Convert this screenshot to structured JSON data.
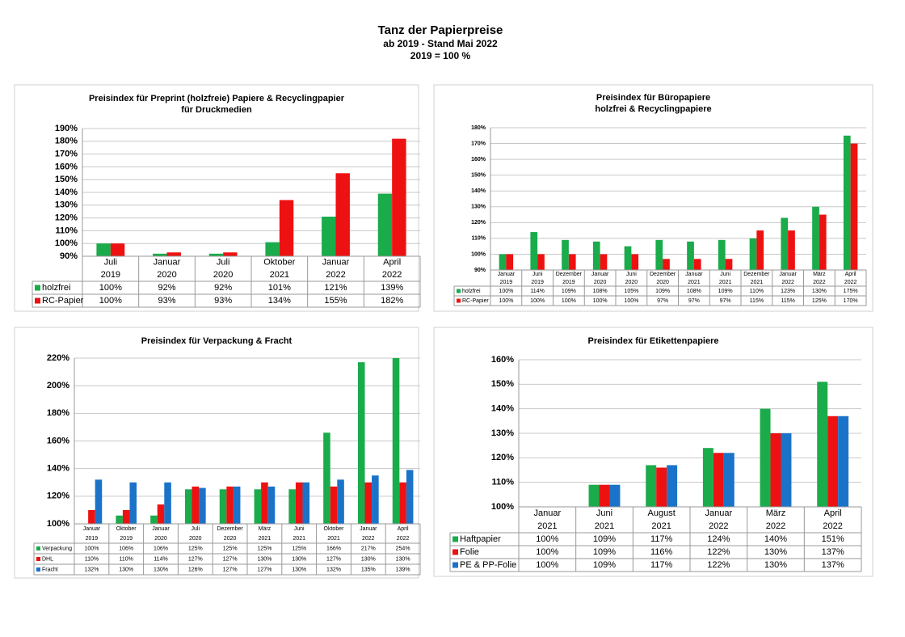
{
  "title": "Tanz der Papierpreise",
  "subtitle": [
    "ab 2019 - Stand Mai 2022",
    "2019 = 100 %"
  ],
  "chart_data": [
    {
      "type": "bar",
      "title": [
        "Preisindex für Preprint (holzfreie) Papiere & Recyclingpapier",
        "für Druckmedien"
      ],
      "categories": [
        [
          "Juli",
          "2019"
        ],
        [
          "Januar",
          "2020"
        ],
        [
          "Juli",
          "2020"
        ],
        [
          "Oktober",
          "2021"
        ],
        [
          "Januar",
          "2022"
        ],
        [
          "April",
          "2022"
        ]
      ],
      "series": [
        {
          "name": "holzfrei",
          "color": "#1aab4b",
          "values": [
            100,
            92,
            92,
            101,
            121,
            139
          ],
          "value_labels": [
            "100%",
            "92%",
            "92%",
            "101%",
            "121%",
            "139%"
          ]
        },
        {
          "name": "RC-Papier",
          "color": "#ee1111",
          "values": [
            100,
            93,
            93,
            134,
            155,
            182
          ],
          "value_labels": [
            "100%",
            "93%",
            "93%",
            "134%",
            "155%",
            "182%"
          ]
        }
      ],
      "ylim": [
        90,
        190
      ],
      "yticks": [
        {
          "value": 90,
          "label": "90%"
        },
        {
          "value": 100,
          "label": "100%"
        },
        {
          "value": 110,
          "label": "110%"
        },
        {
          "value": 120,
          "label": "120%"
        },
        {
          "value": 130,
          "label": "130%"
        },
        {
          "value": 140,
          "label": "140%"
        },
        {
          "value": 150,
          "label": "150%"
        },
        {
          "value": 160,
          "label": "160%"
        },
        {
          "value": 170,
          "label": "170%"
        },
        {
          "value": 180,
          "label": "180%"
        },
        {
          "value": 190,
          "label": "190%"
        }
      ],
      "grid": true
    },
    {
      "type": "bar",
      "title": [
        "Preisindex für  Büropapiere",
        "holzfrei & Recyclingpapiere"
      ],
      "categories": [
        [
          "Januar",
          "2019"
        ],
        [
          "Juni",
          "2019"
        ],
        [
          "Dezember",
          "2019"
        ],
        [
          "Januar",
          "2020"
        ],
        [
          "Juni",
          "2020"
        ],
        [
          "Dezember",
          "2020"
        ],
        [
          "Januar",
          "2021"
        ],
        [
          "Juni",
          "2021"
        ],
        [
          "Dezember",
          "2021"
        ],
        [
          "Januar",
          "2022"
        ],
        [
          "März",
          "2022"
        ],
        [
          "April",
          "2022"
        ]
      ],
      "series": [
        {
          "name": "holzfrei",
          "color": "#1aab4b",
          "values": [
            100,
            114,
            109,
            108,
            105,
            109,
            108,
            109,
            110,
            123,
            130,
            175
          ],
          "value_labels": [
            "100%",
            "114%",
            "109%",
            "108%",
            "105%",
            "109%",
            "108%",
            "109%",
            "110%",
            "123%",
            "130%",
            "175%"
          ]
        },
        {
          "name": "RC-Papier",
          "color": "#ee1111",
          "values": [
            100,
            100,
            100,
            100,
            100,
            97,
            97,
            97,
            115,
            115,
            125,
            170
          ],
          "value_labels": [
            "100%",
            "100%",
            "100%",
            "100%",
            "100%",
            "97%",
            "97%",
            "97%",
            "115%",
            "115%",
            "125%",
            "170%"
          ]
        }
      ],
      "ylim": [
        90,
        180
      ],
      "yticks": [
        {
          "value": 90,
          "label": "90%"
        },
        {
          "value": 100,
          "label": "100%"
        },
        {
          "value": 110,
          "label": "110%"
        },
        {
          "value": 120,
          "label": "120%"
        },
        {
          "value": 130,
          "label": "130%"
        },
        {
          "value": 140,
          "label": "140%"
        },
        {
          "value": 150,
          "label": "150%"
        },
        {
          "value": 160,
          "label": "160%"
        },
        {
          "value": 170,
          "label": "170%"
        },
        {
          "value": 180,
          "label": "180%"
        }
      ],
      "grid": true
    },
    {
      "type": "bar",
      "title": [
        "Preisindex für Verpackung & Fracht"
      ],
      "categories": [
        [
          "Januar",
          "2019"
        ],
        [
          "Oktober",
          "2019"
        ],
        [
          "Januar",
          "2020"
        ],
        [
          "Juli",
          "2020"
        ],
        [
          "Dezember",
          "2020"
        ],
        [
          "März",
          "2021"
        ],
        [
          "Juni",
          "2021"
        ],
        [
          "Oktober",
          "2021"
        ],
        [
          "Januar",
          "2022"
        ],
        [
          "April",
          "2022"
        ]
      ],
      "series": [
        {
          "name": "Verpackung",
          "color": "#1aab4b",
          "values": [
            100,
            106,
            106,
            125,
            125,
            125,
            125,
            166,
            217,
            254
          ],
          "value_labels": [
            "100%",
            "106%",
            "106%",
            "125%",
            "125%",
            "125%",
            "125%",
            "166%",
            "217%",
            "254%"
          ]
        },
        {
          "name": "DHL",
          "color": "#ee1111",
          "values": [
            110,
            110,
            114,
            127,
            127,
            130,
            130,
            127,
            130,
            130
          ],
          "value_labels": [
            "110%",
            "110%",
            "114%",
            "127%",
            "127%",
            "130%",
            "130%",
            "127%",
            "130%",
            "130%"
          ]
        },
        {
          "name": "Fracht",
          "color": "#1a73c8",
          "values": [
            132,
            130,
            130,
            126,
            127,
            127,
            130,
            132,
            135,
            139
          ],
          "value_labels": [
            "132%",
            "130%",
            "130%",
            "126%",
            "127%",
            "127%",
            "130%",
            "132%",
            "135%",
            "139%"
          ]
        }
      ],
      "ylim": [
        100,
        220
      ],
      "yticks": [
        {
          "value": 100,
          "label": "100%"
        },
        {
          "value": 120,
          "label": "120%"
        },
        {
          "value": 140,
          "label": "140%"
        },
        {
          "value": 160,
          "label": "160%"
        },
        {
          "value": 180,
          "label": "180%"
        },
        {
          "value": 200,
          "label": "200%"
        },
        {
          "value": 220,
          "label": "220%"
        }
      ],
      "grid": true
    },
    {
      "type": "bar",
      "title": [
        "Preisindex für Etikettenpapiere"
      ],
      "categories": [
        [
          "Januar",
          "2021"
        ],
        [
          "Juni",
          "2021"
        ],
        [
          "August",
          "2021"
        ],
        [
          "Januar",
          "2022"
        ],
        [
          "März",
          "2022"
        ],
        [
          "April",
          "2022"
        ]
      ],
      "series": [
        {
          "name": "Haftpapier",
          "color": "#1aab4b",
          "values": [
            100,
            109,
            117,
            124,
            140,
            151
          ],
          "value_labels": [
            "100%",
            "109%",
            "117%",
            "124%",
            "140%",
            "151%"
          ]
        },
        {
          "name": "Folie",
          "color": "#ee1111",
          "values": [
            100,
            109,
            116,
            122,
            130,
            137
          ],
          "value_labels": [
            "100%",
            "109%",
            "116%",
            "122%",
            "130%",
            "137%"
          ]
        },
        {
          "name": "PE & PP-Folie",
          "color": "#1a73c8",
          "values": [
            100,
            109,
            117,
            122,
            130,
            137
          ],
          "value_labels": [
            "100%",
            "109%",
            "117%",
            "122%",
            "130%",
            "137%"
          ]
        }
      ],
      "ylim": [
        100,
        160
      ],
      "yticks": [
        {
          "value": 100,
          "label": "100%"
        },
        {
          "value": 110,
          "label": "110%"
        },
        {
          "value": 120,
          "label": "120%"
        },
        {
          "value": 130,
          "label": "130%"
        },
        {
          "value": 140,
          "label": "140%"
        },
        {
          "value": 150,
          "label": "150%"
        },
        {
          "value": 160,
          "label": "160%"
        }
      ],
      "grid": true
    }
  ]
}
